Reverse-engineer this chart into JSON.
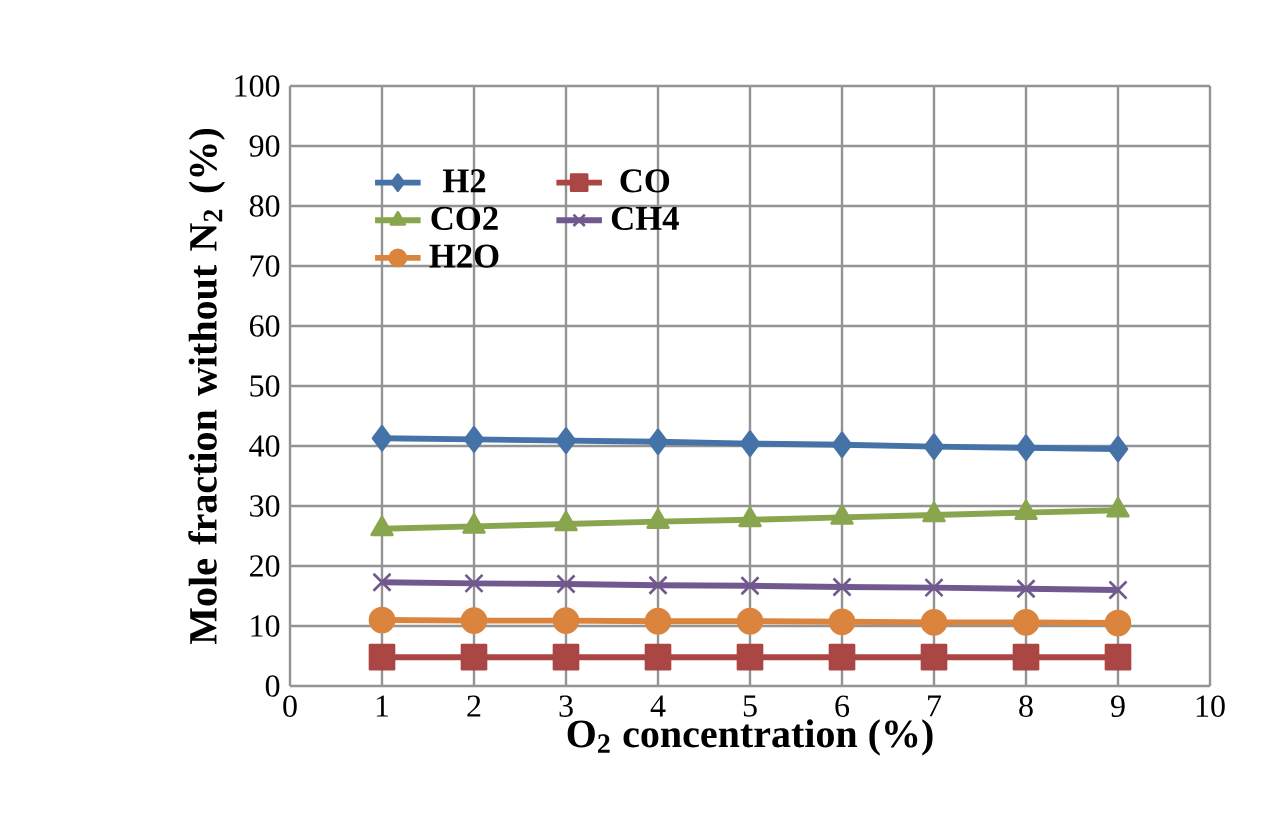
{
  "chart_data": {
    "type": "line",
    "xlabel": "O$_{2}$ concentration (%)",
    "ylabel": "Mole fraction without N$_{2}$ (%)",
    "x": [
      1,
      2,
      3,
      4,
      5,
      6,
      7,
      8,
      9
    ],
    "xlim": [
      0,
      10
    ],
    "xticks": [
      0,
      1,
      2,
      3,
      4,
      5,
      6,
      7,
      8,
      9,
      10
    ],
    "ylim": [
      0,
      100
    ],
    "yticks": [
      0,
      10,
      20,
      30,
      40,
      50,
      60,
      70,
      80,
      90,
      100
    ],
    "grid": true,
    "legend": "top left",
    "line_style": "solid",
    "series": [
      {
        "name": "H2",
        "color": "#4572a7",
        "marker": "diamond",
        "values": [
          41.3,
          41.1,
          40.9,
          40.7,
          40.4,
          40.2,
          39.9,
          39.7,
          39.5
        ]
      },
      {
        "name": "CO",
        "color": "#aa4643",
        "marker": "square",
        "values": [
          4.8,
          4.8,
          4.8,
          4.8,
          4.8,
          4.8,
          4.8,
          4.8,
          4.8
        ]
      },
      {
        "name": "CO2",
        "color": "#89a54e",
        "marker": "triangle",
        "values": [
          26.2,
          26.6,
          27.0,
          27.4,
          27.7,
          28.1,
          28.5,
          28.9,
          29.3
        ]
      },
      {
        "name": "CH4",
        "color": "#71588f",
        "marker": "cross",
        "values": [
          17.3,
          17.1,
          17.0,
          16.8,
          16.7,
          16.5,
          16.4,
          16.2,
          16.0
        ]
      },
      {
        "name": "H2O",
        "color": "#db843d",
        "marker": "circle",
        "values": [
          11.0,
          10.9,
          10.9,
          10.8,
          10.8,
          10.7,
          10.6,
          10.6,
          10.5
        ]
      }
    ]
  }
}
